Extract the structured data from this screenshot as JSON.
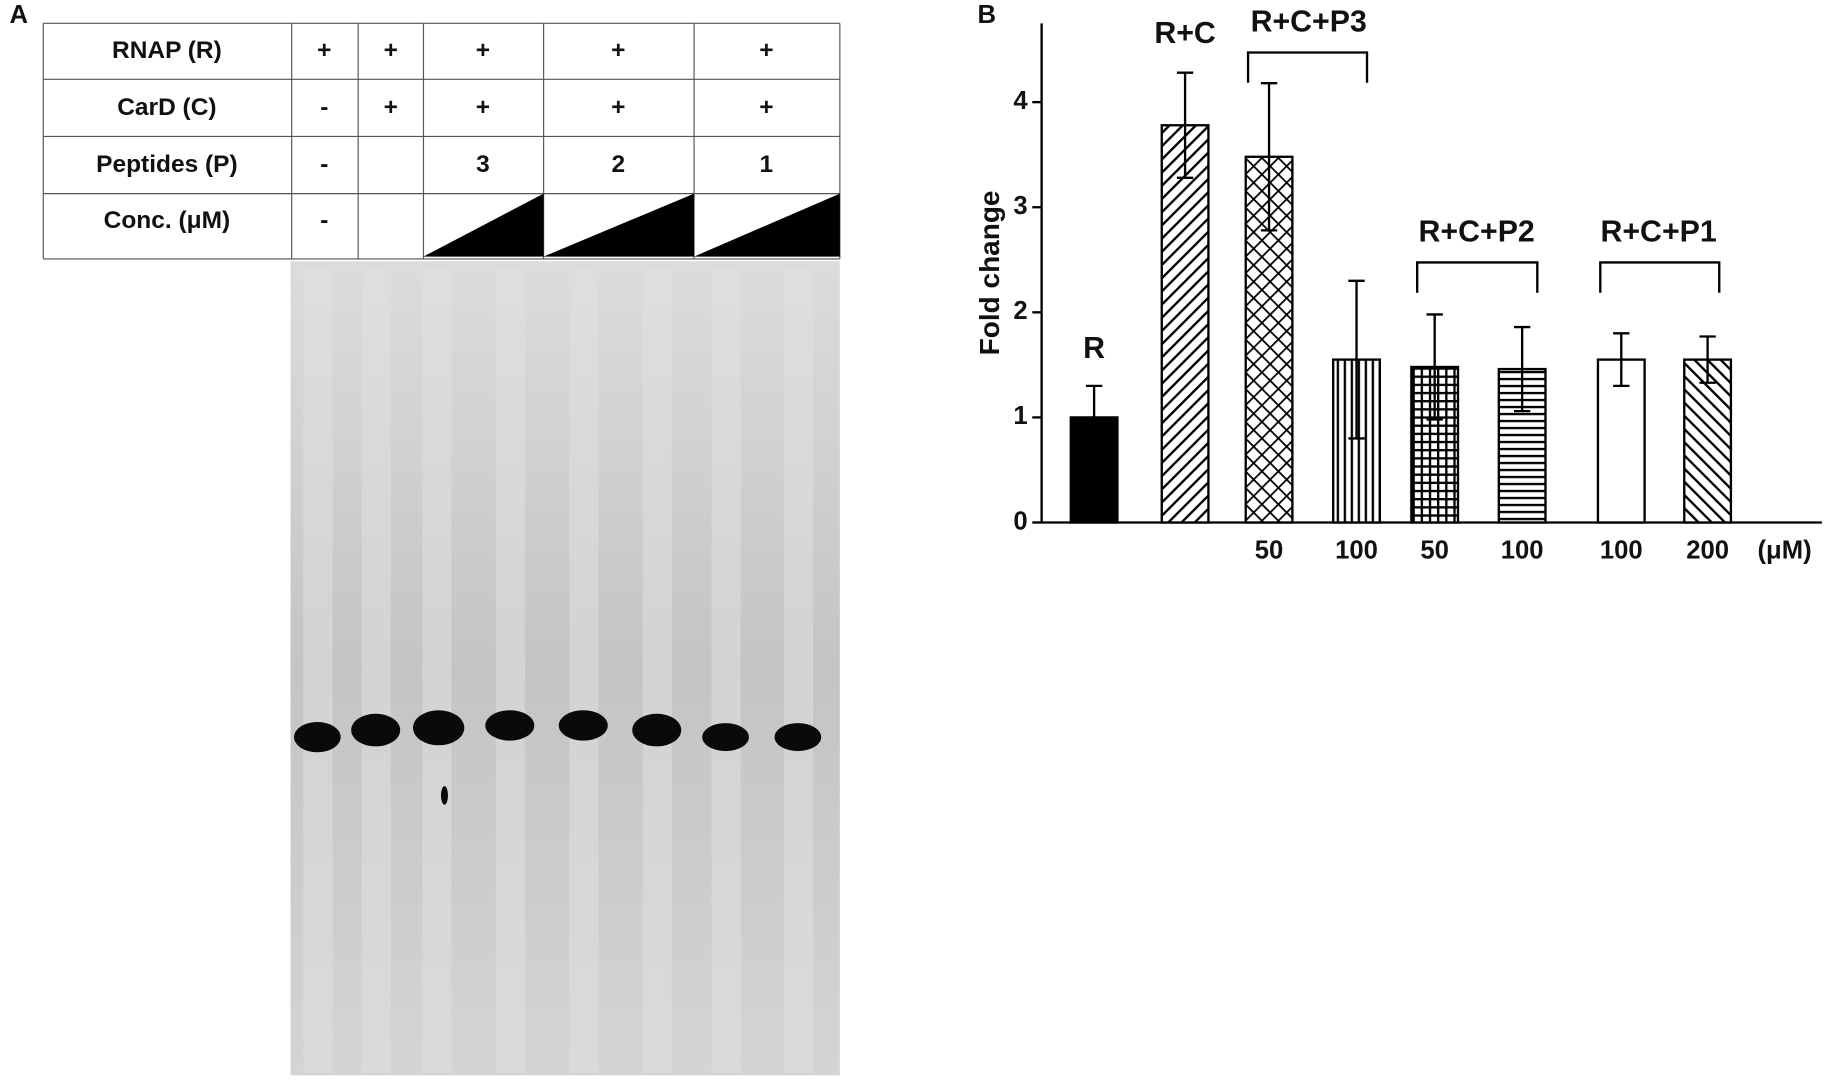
{
  "panel_a": {
    "label": "A",
    "rows": [
      {
        "label": "RNAP (R)",
        "cells": [
          "+",
          "+",
          "+",
          "+",
          "+"
        ]
      },
      {
        "label": "CarD (C)",
        "cells": [
          "-",
          "+",
          "+",
          "+",
          "+"
        ]
      },
      {
        "label": "Peptides (P)",
        "cells": [
          "-",
          null,
          "3",
          "2",
          "1"
        ]
      },
      {
        "label": "Conc. (μM)",
        "cells": [
          "-",
          null,
          null,
          null,
          null
        ]
      }
    ]
  },
  "chart_data": {
    "type": "bar",
    "label": "B",
    "ylabel": "Fold change",
    "categories": [
      null,
      null,
      "50",
      "100",
      "50",
      "100",
      "100",
      "200"
    ],
    "unit_label": "(μM)",
    "groups": [
      "R",
      "R+C",
      "R+C+P3",
      "R+C+P2",
      "R+C+P1"
    ],
    "values": [
      1.0,
      3.78,
      3.48,
      1.55,
      1.48,
      1.46,
      1.55,
      1.55
    ],
    "errors": [
      0.3,
      0.5,
      0.7,
      0.75,
      0.5,
      0.4,
      0.25,
      0.22
    ],
    "patterns": [
      "solid",
      "diag-down",
      "crosshatch",
      "vertical",
      "grid",
      "horizontal",
      "none",
      "diag-up"
    ],
    "color": "#000000",
    "ylim": [
      0,
      4.75
    ],
    "yticks": [
      0,
      1,
      2,
      3,
      4
    ]
  }
}
